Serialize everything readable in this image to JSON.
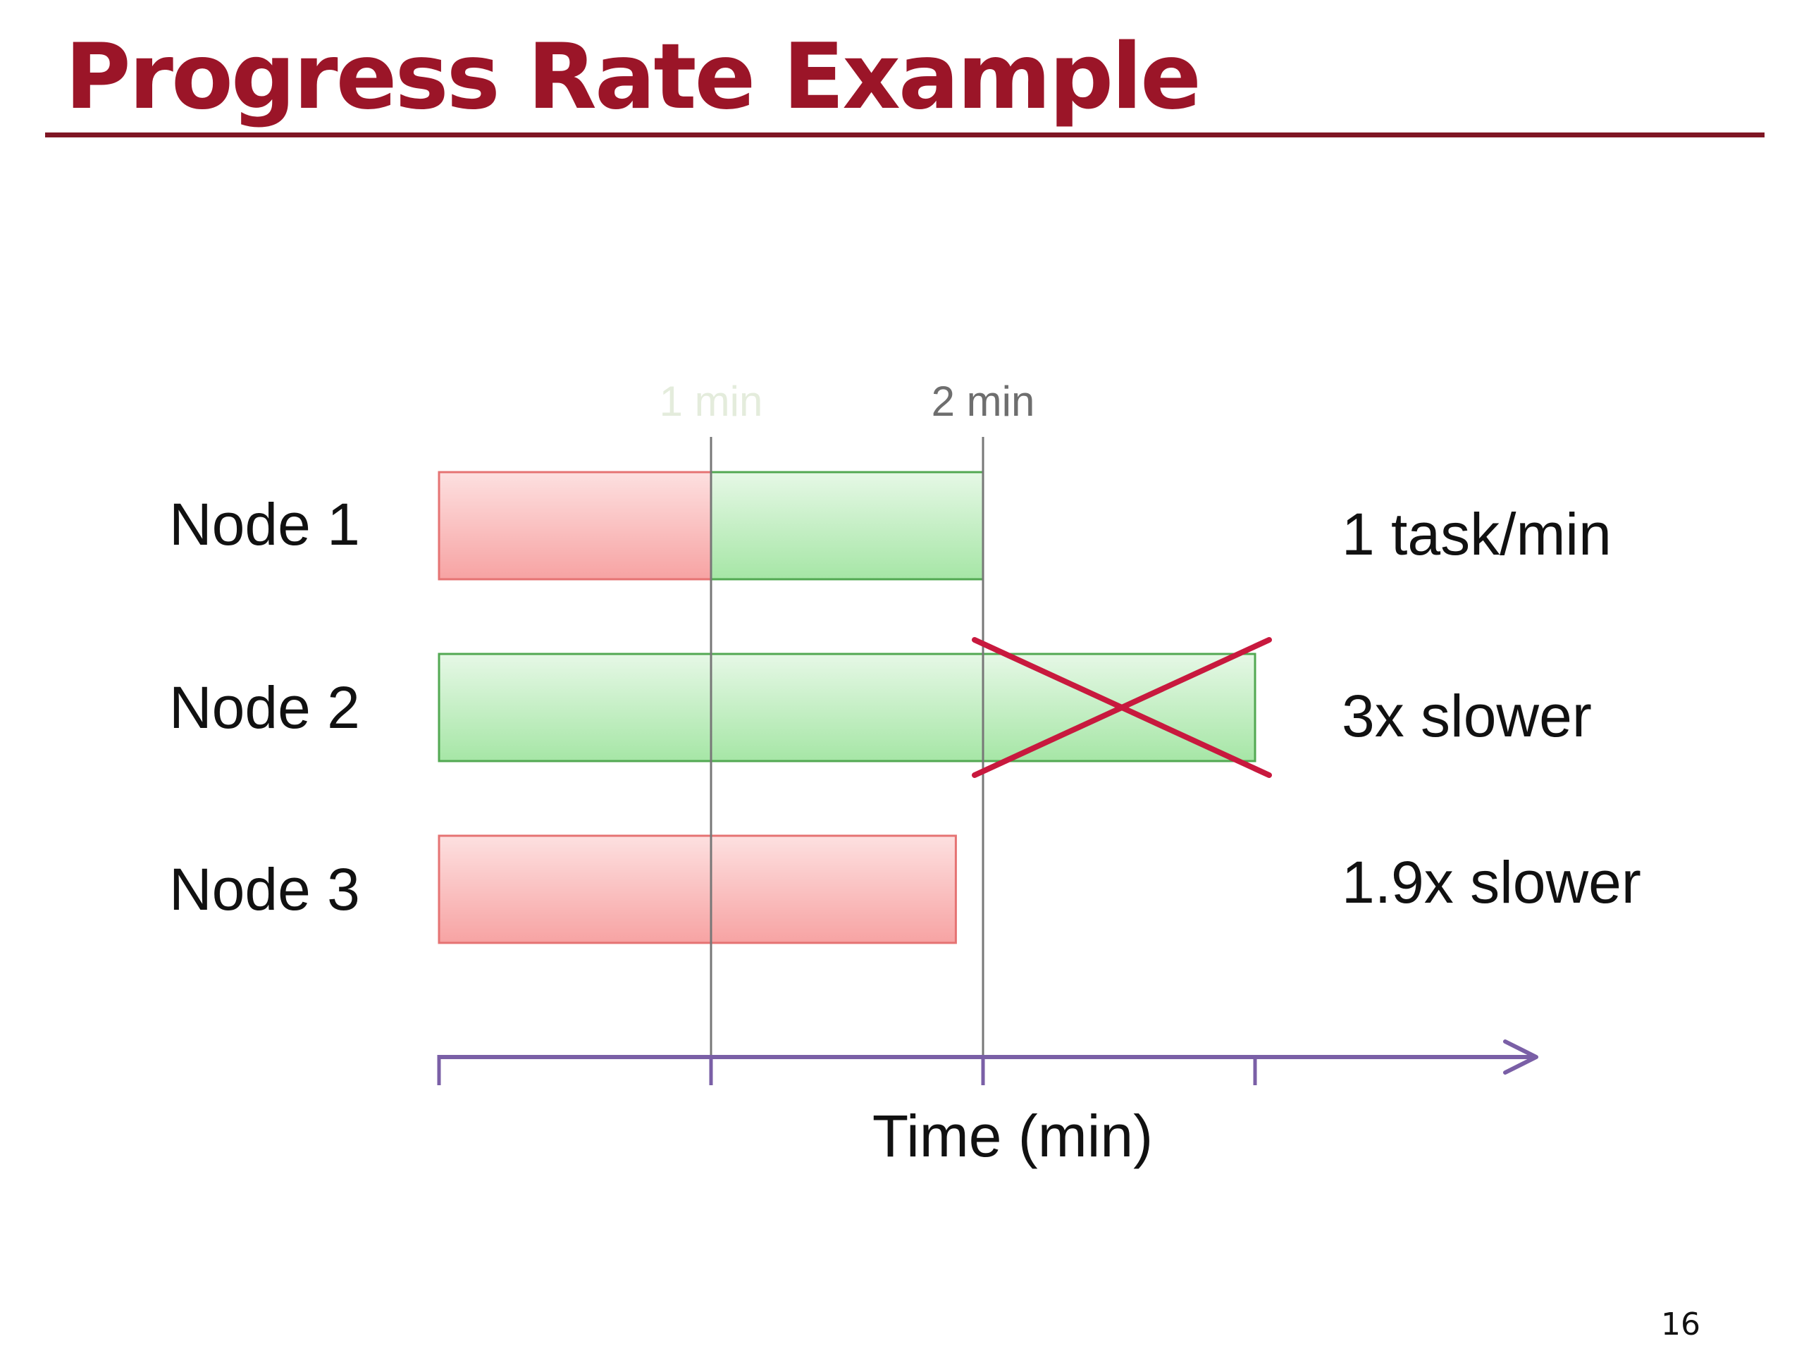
{
  "slide": {
    "title": "Progress Rate Example",
    "page_number": "16"
  },
  "timeline": {
    "tick_labels": [
      {
        "text": "1 min",
        "minute": 1,
        "color": "#e4ecdc"
      },
      {
        "text": "2 min",
        "minute": 2,
        "color": "#6e6e6e"
      }
    ],
    "axis_label": "Time (min)",
    "axis_ticks_minutes": [
      0,
      1,
      2,
      3
    ],
    "axis_color": "#7a5fa6",
    "marker_line_color": "#777777"
  },
  "nodes": [
    {
      "label": "Node 1",
      "rate_label": "1 task/min",
      "segments": [
        {
          "start": 0,
          "end": 1,
          "kind": "red"
        },
        {
          "start": 1,
          "end": 2,
          "kind": "green"
        }
      ],
      "crossed_out": false
    },
    {
      "label": "Node 2",
      "rate_label": "3x slower",
      "segments": [
        {
          "start": 0,
          "end": 3,
          "kind": "green"
        }
      ],
      "crossed_out": true
    },
    {
      "label": "Node 3",
      "rate_label": "1.9x slower",
      "segments": [
        {
          "start": 0,
          "end": 1.9,
          "kind": "red"
        }
      ],
      "crossed_out": false
    }
  ],
  "colors": {
    "title": "#9b1528",
    "red_fill_top": "#fde0e0",
    "red_fill_bottom": "#f7a3a3",
    "red_stroke": "#e57373",
    "green_fill_top": "#e6f8e6",
    "green_fill_bottom": "#a6e6a6",
    "green_stroke": "#52a852",
    "cross": "#c8193e"
  }
}
